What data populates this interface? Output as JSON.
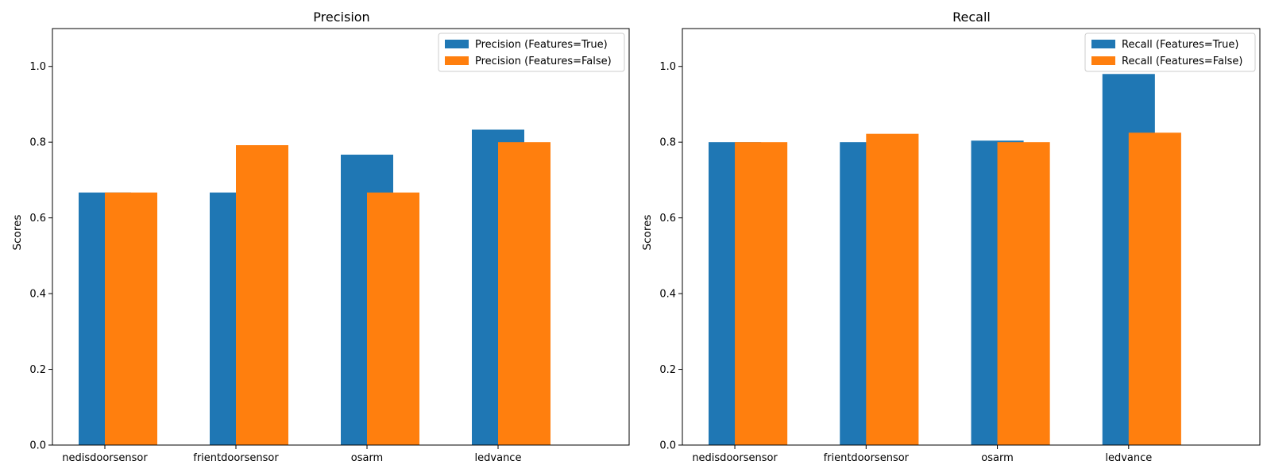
{
  "chart_data": [
    {
      "type": "bar",
      "title": "Precision",
      "xlabel": "",
      "ylabel": "Scores",
      "ylim": [
        0,
        1.1
      ],
      "yticks": [
        "0.0",
        "0.2",
        "0.4",
        "0.6",
        "0.8",
        "1.0"
      ],
      "grid": false,
      "legend_position": "top-right",
      "categories": [
        "nedisdoorsensor",
        "frientdoorsensor",
        "osarm",
        "ledvance"
      ],
      "series": [
        {
          "name": "Precision (Features=True)",
          "color": "#1f77b4",
          "values": [
            0.667,
            0.667,
            0.767,
            0.833
          ]
        },
        {
          "name": "Precision (Features=False)",
          "color": "#ff7f0e",
          "values": [
            0.667,
            0.792,
            0.667,
            0.8
          ]
        }
      ]
    },
    {
      "type": "bar",
      "title": "Recall",
      "xlabel": "",
      "ylabel": "Scores",
      "ylim": [
        0,
        1.1
      ],
      "yticks": [
        "0.0",
        "0.2",
        "0.4",
        "0.6",
        "0.8",
        "1.0"
      ],
      "grid": false,
      "legend_position": "top-right",
      "categories": [
        "nedisdoorsensor",
        "frientdoorsensor",
        "osarm",
        "ledvance"
      ],
      "series": [
        {
          "name": "Recall (Features=True)",
          "color": "#1f77b4",
          "values": [
            0.8,
            0.8,
            0.804,
            0.98
          ]
        },
        {
          "name": "Recall (Features=False)",
          "color": "#ff7f0e",
          "values": [
            0.8,
            0.822,
            0.8,
            0.825
          ]
        }
      ]
    }
  ]
}
